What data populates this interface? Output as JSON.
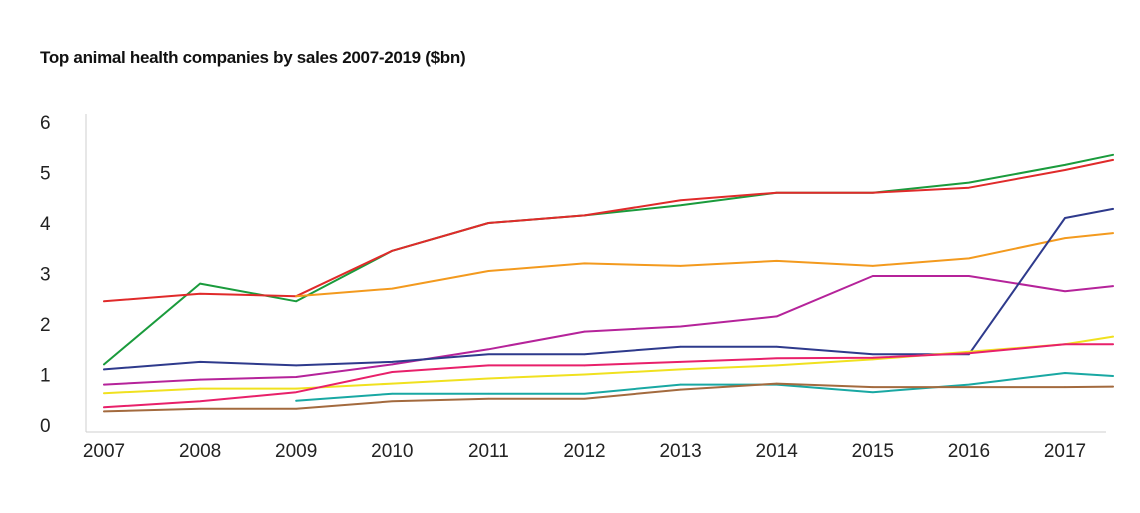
{
  "chart_data": {
    "type": "line",
    "title": "Top animal health companies by sales 2007-2019 ($bn)",
    "xlabel": "",
    "ylabel": "",
    "x": [
      2007,
      2008,
      2009,
      2010,
      2011,
      2012,
      2013,
      2014,
      2015,
      2016,
      2017,
      2017.5
    ],
    "x_tick_labels": [
      "2007",
      "2008",
      "2009",
      "2010",
      "2011",
      "2012",
      "2013",
      "2014",
      "2015",
      "2016",
      "2017"
    ],
    "y_tick_labels": [
      "0",
      "1",
      "2",
      "3",
      "4",
      "5",
      "6"
    ],
    "ylim": [
      0,
      6
    ],
    "grid": false,
    "series": [
      {
        "color": "#1a9b3c",
        "values": [
          1.2,
          2.8,
          2.45,
          3.45,
          4.0,
          4.15,
          4.35,
          4.6,
          4.6,
          4.8,
          5.15,
          5.35
        ]
      },
      {
        "color": "#e02a2a",
        "values": [
          2.45,
          2.6,
          2.55,
          3.45,
          4.0,
          4.15,
          4.45,
          4.6,
          4.6,
          4.7,
          5.05,
          5.25
        ]
      },
      {
        "color": "#f39a1e",
        "values": [
          null,
          null,
          2.55,
          2.7,
          3.05,
          3.2,
          3.15,
          3.25,
          3.15,
          3.3,
          3.7,
          3.8
        ]
      },
      {
        "color": "#b5239a",
        "values": [
          0.8,
          0.9,
          0.95,
          1.2,
          1.5,
          1.85,
          1.95,
          2.15,
          2.95,
          2.95,
          2.65,
          2.75
        ]
      },
      {
        "color": "#2e3a8c",
        "values": [
          1.1,
          1.25,
          1.18,
          1.25,
          1.4,
          1.4,
          1.55,
          1.55,
          1.4,
          1.4,
          4.1,
          4.28
        ]
      },
      {
        "color": "#f0e11f",
        "values": [
          0.63,
          0.72,
          0.72,
          0.82,
          0.92,
          1.0,
          1.1,
          1.18,
          1.3,
          1.45,
          1.6,
          1.75
        ]
      },
      {
        "color": "#e8206a",
        "values": [
          0.35,
          0.47,
          0.65,
          1.05,
          1.18,
          1.18,
          1.25,
          1.32,
          1.33,
          1.42,
          1.6,
          1.6
        ]
      },
      {
        "color": "#19a8a3",
        "values": [
          null,
          null,
          0.48,
          0.62,
          0.62,
          0.62,
          0.8,
          0.8,
          0.65,
          0.8,
          1.03,
          0.97
        ]
      },
      {
        "color": "#a36a3e",
        "values": [
          0.27,
          0.32,
          0.32,
          0.47,
          0.52,
          0.52,
          0.7,
          0.82,
          0.75,
          0.75,
          0.75,
          0.76
        ]
      }
    ]
  }
}
